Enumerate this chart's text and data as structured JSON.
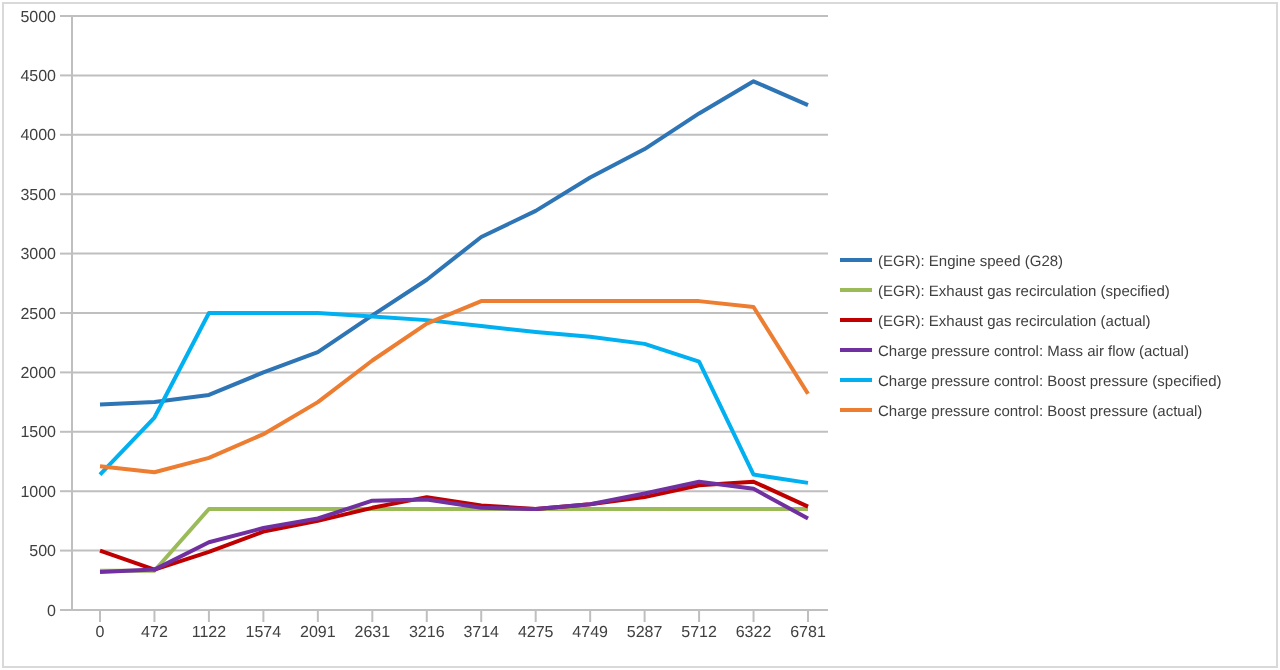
{
  "chart_data": {
    "type": "line",
    "categories": [
      "0",
      "472",
      "1122",
      "1574",
      "2091",
      "2631",
      "3216",
      "3714",
      "4275",
      "4749",
      "5287",
      "5712",
      "6322",
      "6781"
    ],
    "series": [
      {
        "name": "(EGR):  Engine speed (G28)",
        "color": "#2e75b6",
        "values": [
          1730,
          1750,
          1810,
          2000,
          2170,
          2480,
          2780,
          3140,
          3360,
          3640,
          3880,
          4180,
          4450,
          4250
        ]
      },
      {
        "name": "(EGR): Exhaust gas recirculation (specified)",
        "color": "#9bbb59",
        "values": [
          330,
          330,
          850,
          850,
          850,
          850,
          850,
          850,
          850,
          850,
          850,
          850,
          850,
          850
        ]
      },
      {
        "name": "(EGR): Exhaust gas recirculation (actual)",
        "color": "#c00000",
        "values": [
          500,
          340,
          490,
          660,
          750,
          860,
          950,
          880,
          850,
          890,
          950,
          1050,
          1080,
          870
        ]
      },
      {
        "name": "Charge pressure control: Mass air flow (actual)",
        "color": "#7030a0",
        "values": [
          320,
          340,
          570,
          690,
          770,
          920,
          930,
          860,
          850,
          890,
          980,
          1080,
          1020,
          770
        ]
      },
      {
        "name": "Charge pressure control: Boost pressure (specified)",
        "color": "#00b0f0",
        "values": [
          1140,
          1620,
          2500,
          2500,
          2500,
          2470,
          2440,
          2390,
          2340,
          2300,
          2240,
          2090,
          1140,
          1070
        ]
      },
      {
        "name": "Charge pressure control: Boost pressure (actual)",
        "color": "#ed7d31",
        "values": [
          1210,
          1160,
          1280,
          1480,
          1750,
          2100,
          2410,
          2600,
          2600,
          2600,
          2600,
          2600,
          2550,
          1820
        ]
      }
    ],
    "ylim": [
      0,
      5000
    ],
    "yticks": [
      0,
      500,
      1000,
      1500,
      2000,
      2500,
      3000,
      3500,
      4000,
      4500,
      5000
    ],
    "grid": "y",
    "legend": "right",
    "marker": "none",
    "line_style": "solid"
  }
}
